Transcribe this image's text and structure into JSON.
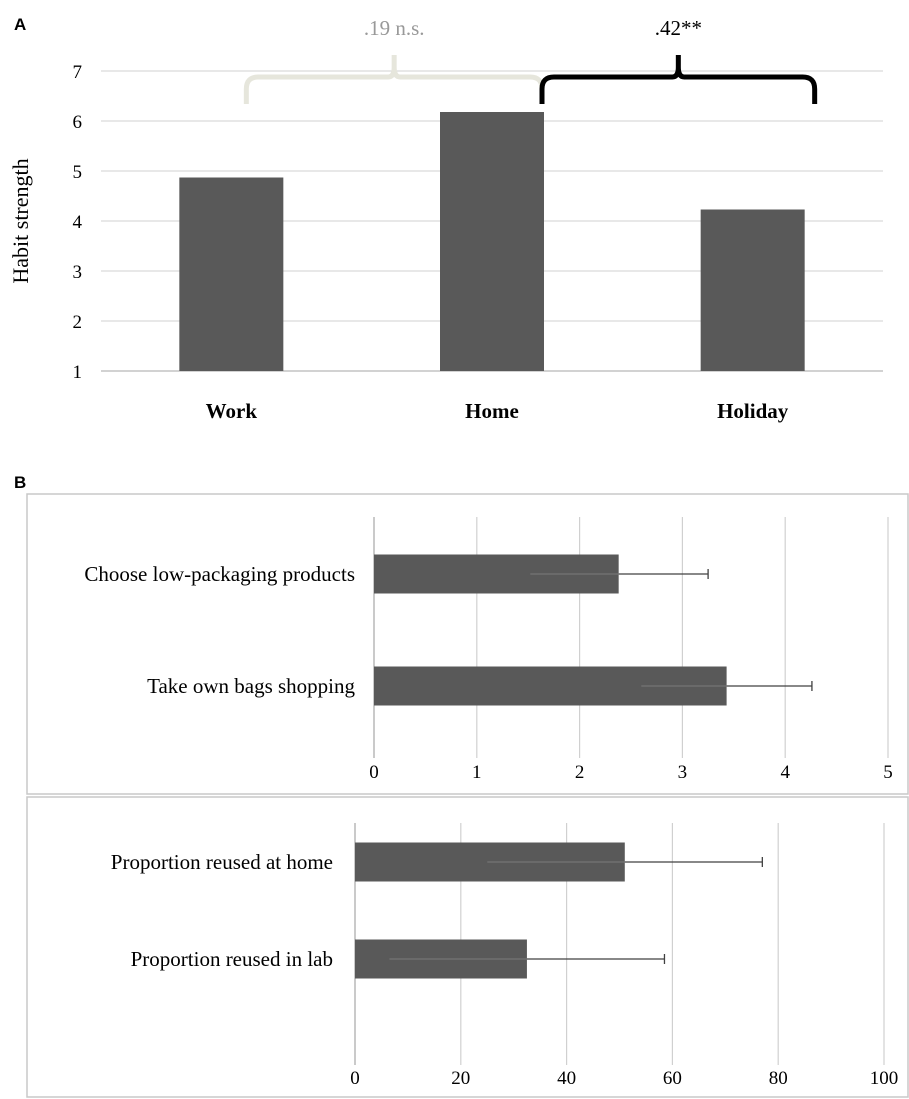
{
  "figure": {
    "bar_color": "#595959",
    "grid_color": "#d0d0d0",
    "error_bar_color": "#404040",
    "frame_color": "#c8c8c8"
  },
  "chart_data": [
    {
      "panel": "A",
      "type": "bar",
      "orientation": "vertical",
      "categories": [
        "Work",
        "Home",
        "Holiday"
      ],
      "values": [
        4.87,
        6.18,
        4.23
      ],
      "ylabel": "Habit strength",
      "ylim": [
        1,
        7
      ],
      "yticks": [
        "1",
        "2",
        "3",
        "4",
        "5",
        "6",
        "7"
      ],
      "grid": true,
      "annotations": [
        {
          "text": ".19 n.s.",
          "from": "Work",
          "to": "Home",
          "color": "#e6e6dc",
          "text_color": "#999999"
        },
        {
          "text": ".42**",
          "from": "Home",
          "to": "Holiday",
          "color": "#000000",
          "text_color": "#000000"
        }
      ]
    },
    {
      "panel": "B",
      "type": "bar",
      "orientation": "horizontal",
      "categories": [
        "Choose low-packaging products",
        "Take own bags shopping"
      ],
      "values": [
        2.38,
        3.43
      ],
      "error_high": [
        3.25,
        4.26
      ],
      "error_low": [
        1.52,
        2.6
      ],
      "xlim": [
        0,
        5
      ],
      "xticks": [
        "0",
        "1",
        "2",
        "3",
        "4",
        "5"
      ],
      "grid": true
    },
    {
      "panel": "",
      "type": "bar",
      "orientation": "horizontal",
      "categories": [
        "Proportion reused at home",
        "Proportion reused in lab"
      ],
      "values": [
        51,
        32.5
      ],
      "error_high": [
        77,
        58.5
      ],
      "error_low": [
        25,
        6.5
      ],
      "xlim": [
        0,
        100
      ],
      "xticks": [
        "0",
        "20",
        "40",
        "60",
        "80",
        "100"
      ],
      "grid": true
    }
  ],
  "labels": {
    "panel_a": "A",
    "panel_b": "B"
  }
}
